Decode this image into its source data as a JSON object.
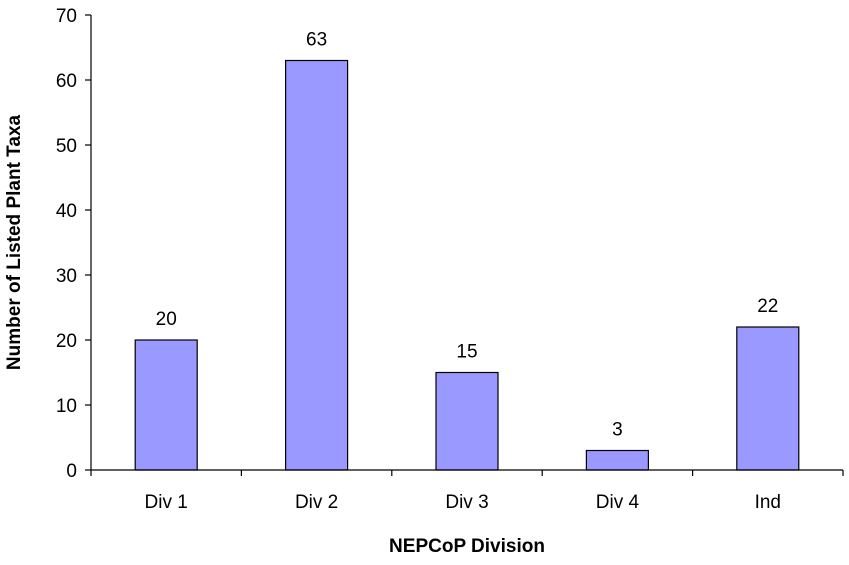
{
  "chart_data": {
    "type": "bar",
    "title": "",
    "xlabel": "NEPCoP Division",
    "ylabel": "Number of Listed Plant Taxa",
    "categories": [
      "Div 1",
      "Div 2",
      "Div 3",
      "Div 4",
      "Ind"
    ],
    "values": [
      20,
      63,
      15,
      3,
      22
    ],
    "ylim": [
      0,
      70
    ],
    "yticks": [
      0,
      10,
      20,
      30,
      40,
      50,
      60,
      70
    ],
    "bar_color": "#9999ff",
    "grid": false,
    "legend": "none",
    "data_labels": true
  }
}
